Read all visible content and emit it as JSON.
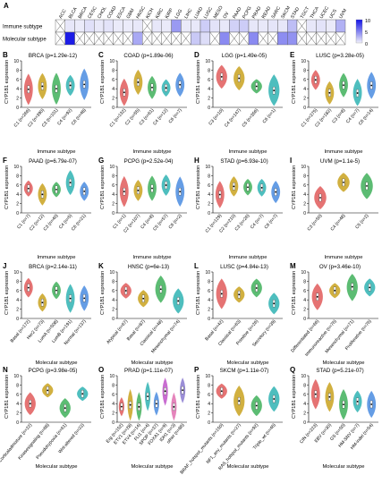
{
  "heatmap": {
    "panel_letter": "A",
    "cancers": [
      "ACC",
      "BLCA",
      "BRCA",
      "CESC",
      "CHOL",
      "COAD",
      "ESCA",
      "GBM",
      "HNSC",
      "KICH",
      "KIRC",
      "KIRP",
      "LGG",
      "LIHC",
      "LUAD",
      "LUSC",
      "MESO",
      "OV",
      "PAAD",
      "PCPG",
      "PRAD",
      "READ",
      "SARC",
      "SKCM",
      "STAD",
      "TGCT",
      "THCA",
      "UCEC",
      "UCS",
      "UVM"
    ],
    "rows": [
      {
        "label": "Immune subtype",
        "values": [
          null,
          0.6,
          0.3,
          1,
          0.5,
          0.8,
          0.4,
          0.3,
          0.5,
          null,
          0.6,
          0.4,
          5.5,
          0.4,
          0.5,
          2.2,
          0.8,
          0.5,
          2,
          2.3,
          0.6,
          0.5,
          0.7,
          0.6,
          3.2,
          null,
          0.6,
          0.8,
          0.4,
          4
        ]
      },
      {
        "label": "Molecular subtype",
        "values": [
          null,
          13.5,
          null,
          null,
          null,
          null,
          null,
          null,
          4.5,
          null,
          null,
          null,
          null,
          null,
          2.5,
          1.2,
          null,
          6.5,
          null,
          null,
          6.5,
          null,
          null,
          6.3,
          6,
          null,
          null,
          null,
          null,
          null
        ]
      }
    ],
    "colorbar_ticks": [
      "10",
      "5",
      "0"
    ]
  },
  "panels": [
    {
      "letter": "B",
      "title": "BRCA (p=1.29e-12)",
      "xlabel": "Immune subtype",
      "groups": [
        "C1 (n=266)",
        "C2 (n=390)",
        "C3 (n=101)",
        "C4 (n=92)",
        "C6 (n=48)"
      ]
    },
    {
      "letter": "C",
      "title": "COAD (p=1.89e-06)",
      "xlabel": "Immune subtype",
      "groups": [
        "C1 (n=132)",
        "C2 (n=55)",
        "C3 (n=61)",
        "C4 (n=12)",
        "C6 (n=7)"
      ]
    },
    {
      "letter": "D",
      "title": "LGG (p=1.49e-05)",
      "xlabel": "Immune subtype",
      "groups": [
        "C3 (n=10)",
        "C4 (n=147)",
        "C5 (n=356)",
        "C6 (n=1)"
      ]
    },
    {
      "letter": "E",
      "title": "LUSC (p=3.28e-05)",
      "xlabel": "Immune subtype",
      "groups": [
        "C1 (n=275)",
        "C2 (n=182)",
        "C3 (n=8)",
        "C4 (n=7)",
        "C6 (n=14)"
      ]
    },
    {
      "letter": "F",
      "title": "PAAD (p=6.79e-07)",
      "xlabel": "Immune subtype",
      "groups": [
        "C1 (n=7)",
        "C2 (n=12)",
        "C3 (n=40)",
        "C4 (n=5)",
        "C6 (n=21)"
      ]
    },
    {
      "letter": "G",
      "title": "PCPG (p=2.52e-04)",
      "xlabel": "Immune subtype",
      "groups": [
        "C1 (n=1)",
        "C2 (n=107)",
        "C4 (n=8)",
        "C5 (n=57)",
        "C6 (n=2)"
      ]
    },
    {
      "letter": "H",
      "title": "STAD (p=6.93e-10)",
      "xlabel": "Immune subtype",
      "groups": [
        "C1 (n=129)",
        "C2 (n=210)",
        "C3 (n=26)",
        "C4 (n=7)",
        "C6 (n=7)"
      ]
    },
    {
      "letter": "I",
      "title": "UVM (p=1.1e-5)",
      "xlabel": "Immune subtype",
      "groups": [
        "C3 (n=50)",
        "C4 (n=48)",
        "C5 (n=2)"
      ]
    },
    {
      "letter": "J",
      "title": "BRCA (p=2.14e-11)",
      "xlabel": "Molecular subtype",
      "groups": [
        "Basal (n=172)",
        "Her2 (n=73)",
        "LumA (n=508)",
        "LumB (n=191)",
        "Normal (n=137)"
      ]
    },
    {
      "letter": "K",
      "title": "HNSC (p=6e-13)",
      "xlabel": "Molecular subtype",
      "groups": [
        "Atypical (n=67)",
        "Basal (n=87)",
        "Classical (n=48)",
        "Mesenchymal (n=74)"
      ]
    },
    {
      "letter": "L",
      "title": "LUSC (p=4.84e-13)",
      "xlabel": "Molecular subtype",
      "groups": [
        "Basal (n=42)",
        "Classical (n=63)",
        "Primitive (n=26)",
        "Secretory (n=39)"
      ]
    },
    {
      "letter": "M",
      "title": "OV (p=3.46e-10)",
      "xlabel": "Molecular subtype",
      "groups": [
        "Differentiated (n=66)",
        "Immunoreactive (n=76)",
        "Mesenchymal (n=71)",
        "Proliferative (n=76)"
      ]
    },
    {
      "letter": "N",
      "title": "PCPG (p=3.98e-05)",
      "xlabel": "Molecular subtype",
      "groups": [
        "Corticaladmixture (n=22)",
        "Kinasesignaling (n=68)",
        "Pseudohypoxia (n=61)",
        "Wnt-altered (n=22)"
      ]
    },
    {
      "letter": "O",
      "title": "PRAD (p=1.11e-07)",
      "xlabel": "Molecular subtype",
      "groups": [
        "Erg (n=152)",
        "ETV1 (n=28)",
        "ETV4 (n=14)",
        "FLI1 (n=4)",
        "SPOP (n=37)",
        "FOXA1 (n=9)",
        "IDH1 (n=3)",
        "other (n=86)"
      ]
    },
    {
      "letter": "P",
      "title": "SKCM (p=1.11e-07)",
      "xlabel": "Molecular subtype",
      "groups": [
        "BRAF_hotspot_mutants (n=150)",
        "NF1_any_mutants (n=27)",
        "RAS_hotspot_mutants (n=92)",
        "Triple_wt (n=46)"
      ]
    },
    {
      "letter": "Q",
      "title": "STAD (p=5.21e-07)",
      "xlabel": "Molecular subtype",
      "groups": [
        "CIN (n=223)",
        "EBV (n=30)",
        "GS (n=50)",
        "HM-SNV (n=7)",
        "HM-indel (n=54)"
      ]
    }
  ],
  "ylabel": "CYP1B1 expression",
  "yticks": [
    "0",
    "2",
    "4",
    "6",
    "8",
    "10"
  ],
  "violin_colors": [
    "#e05a5a",
    "#c9a21f",
    "#3fb05a",
    "#2fb3b3",
    "#4a8ce0",
    "#c054c9",
    "#e070b0",
    "#8a7ad0"
  ]
}
